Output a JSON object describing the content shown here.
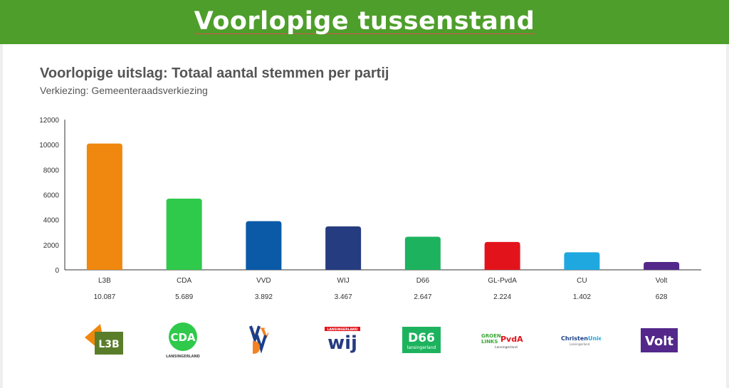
{
  "banner": {
    "title": "Voorlopige tussenstand",
    "color": "#4e9e2b"
  },
  "chart_data": {
    "type": "bar",
    "title": "Voorlopige uitslag: Totaal aantal stemmen per partij",
    "subtitle": "Verkiezing: Gemeenteraadsverkiezing",
    "categories": [
      "L3B",
      "CDA",
      "VVD",
      "WIJ",
      "D66",
      "GL-PvdA",
      "CU",
      "Volt"
    ],
    "values": [
      10087,
      5689,
      3892,
      3467,
      2647,
      2224,
      1402,
      628
    ],
    "value_labels": [
      "10.087",
      "5.689",
      "3.892",
      "3.467",
      "2.647",
      "2.224",
      "1.402",
      "628"
    ],
    "colors": [
      "#f0870e",
      "#2fc94b",
      "#0a5aa8",
      "#263c80",
      "#1db35e",
      "#e3131b",
      "#1fa8e0",
      "#53288a"
    ],
    "yticks": [
      "0",
      "2000",
      "4000",
      "6000",
      "8000",
      "10000",
      "12000"
    ],
    "ylim": [
      0,
      12000
    ],
    "grid": false,
    "legend": "none"
  },
  "logos": {
    "l3b": "L3B",
    "cda": "CDA",
    "cda_sub": "LANSINGERLAND",
    "vvd": "VVD",
    "wij": "wij",
    "wij_sub": "LANSINGERLAND",
    "d66": "D66",
    "d66_sub": "lansingerland",
    "gl_line1": "GROEN",
    "gl_line2": "LINKS",
    "gl_pvda": "PvdA",
    "gl_sub": "Lansingerland",
    "cu_christen": "Christen",
    "cu_unie": "Unie",
    "cu_sub": "Lansingerland",
    "volt": "Volt"
  }
}
